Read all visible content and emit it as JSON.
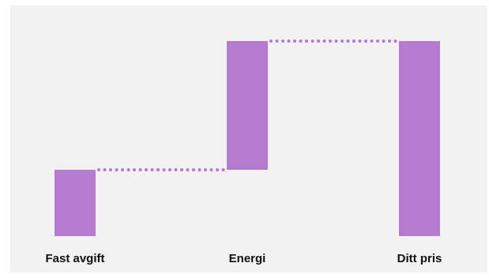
{
  "chart_data": {
    "type": "bar",
    "subtype": "waterfall",
    "categories": [
      "Fast avgift",
      "Energi",
      "Ditt pris"
    ],
    "steps": [
      {
        "category": "Fast avgift",
        "kind": "increase",
        "start": 0,
        "end": 34
      },
      {
        "category": "Energi",
        "kind": "increase",
        "start": 34,
        "end": 100
      },
      {
        "category": "Ditt pris",
        "kind": "total",
        "start": 0,
        "end": 100
      }
    ],
    "connectors": "dotted",
    "bar_color": "#b57bd0",
    "connector_color": "#b57bd0",
    "background_color": "#f2f2f2",
    "title": "",
    "xlabel": "",
    "ylabel": "",
    "grid": false,
    "axes_visible": false
  }
}
